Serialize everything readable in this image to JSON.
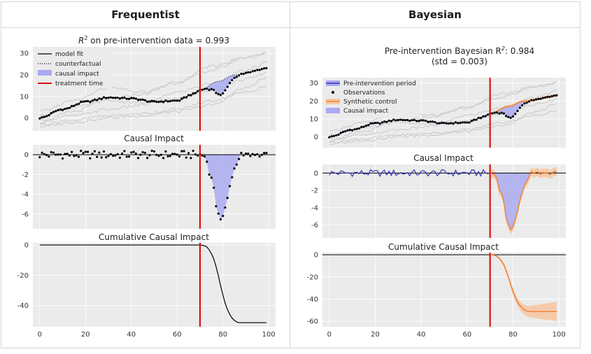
{
  "headers": {
    "frequentist": "Frequentist",
    "bayesian": "Bayesian"
  },
  "colors": {
    "panel_bg": "#ebebeb",
    "grid": "#ffffff",
    "treatment": "#dd1111",
    "impact_fill": "#aaaaf0",
    "orange": "#f08030",
    "blue": "#3333bb",
    "synthetic_band": "#f6c8a4"
  },
  "text": {
    "f_r2_prefix": "R",
    "f_r2_sup": "2",
    "f_r2_suffix": " on pre-intervention data = 0.993",
    "f_causal_title": "Causal Impact",
    "f_cum_title": "Cumulative Causal Impact",
    "b_title_prefix": "Pre-intervention Bayesian R",
    "b_title_sup": "2",
    "b_title_suffix": ": 0.984",
    "b_title_line2": "(std = 0.003)",
    "b_causal_title": "Causal Impact",
    "b_cum_title": "Cumulative Causal Impact"
  },
  "legend": {
    "frequentist": [
      "model fit",
      "counterfactual",
      "causal impact",
      "treatment time"
    ],
    "bayesian": [
      "Pre-intervention period",
      "Observations",
      "Synthetic control",
      "Causal impact"
    ]
  },
  "chart_data": [
    {
      "id": "f_main",
      "type": "line",
      "xlim": [
        -3,
        103
      ],
      "ylim": [
        -6,
        33
      ],
      "yticks": [
        0,
        10,
        20,
        30
      ],
      "xticks": [],
      "grid": true,
      "legend_position": "top-left"
    },
    {
      "id": "f_impact",
      "type": "scatter",
      "title": "Causal Impact",
      "xlim": [
        -3,
        103
      ],
      "ylim": [
        -7.5,
        1.0
      ],
      "yticks": [
        0,
        -2,
        -4,
        -6
      ],
      "xticks": [],
      "grid": true
    },
    {
      "id": "f_cum",
      "type": "line",
      "title": "Cumulative Causal Impact",
      "xlim": [
        -3,
        103
      ],
      "ylim": [
        -54,
        1.5
      ],
      "yticks": [
        0,
        -20,
        -40
      ],
      "xticks": [
        0,
        20,
        40,
        60,
        80,
        100
      ],
      "grid": true
    },
    {
      "id": "b_main",
      "type": "line",
      "xlim": [
        -3,
        103
      ],
      "ylim": [
        -6,
        33
      ],
      "yticks": [
        0,
        10,
        20,
        30
      ],
      "xticks": [],
      "grid": true,
      "legend_position": "top-left"
    },
    {
      "id": "b_impact",
      "type": "line",
      "title": "Causal Impact",
      "xlim": [
        -3,
        103
      ],
      "ylim": [
        -7.5,
        1.0
      ],
      "yticks": [
        0,
        -2,
        -4,
        -6
      ],
      "xticks": [],
      "grid": true
    },
    {
      "id": "b_cum",
      "type": "line",
      "title": "Cumulative Causal Impact",
      "xlim": [
        -3,
        103
      ],
      "ylim": [
        -65,
        2
      ],
      "yticks": [
        0,
        -20,
        -40,
        -60
      ],
      "xticks": [
        0,
        20,
        40,
        60,
        80,
        100
      ],
      "grid": true
    }
  ],
  "series_model": {
    "treatment_time": 70,
    "n_points": 100,
    "fit_knots": [
      [
        0,
        0
      ],
      [
        10,
        4
      ],
      [
        20,
        7.5
      ],
      [
        30,
        9.5
      ],
      [
        40,
        9
      ],
      [
        50,
        7.5
      ],
      [
        60,
        8
      ],
      [
        67,
        11
      ],
      [
        70,
        13
      ],
      [
        78,
        17
      ],
      [
        85,
        20
      ],
      [
        100,
        23
      ]
    ],
    "counterfactual_knots": [
      [
        70,
        13
      ],
      [
        78,
        17
      ],
      [
        85,
        20
      ],
      [
        100,
        23
      ]
    ],
    "impact_knots": [
      [
        70,
        0
      ],
      [
        72,
        -0.3
      ],
      [
        75,
        -2.5
      ],
      [
        78,
        -6
      ],
      [
        79,
        -6.7
      ],
      [
        81,
        -5.5
      ],
      [
        83,
        -3
      ],
      [
        86,
        -1
      ],
      [
        88,
        0
      ],
      [
        100,
        0
      ]
    ],
    "control_curves": [
      [
        [
          0,
          -2
        ],
        [
          15,
          3
        ],
        [
          30,
          9
        ],
        [
          45,
          11
        ],
        [
          60,
          17
        ],
        [
          75,
          22
        ],
        [
          90,
          28
        ],
        [
          100,
          30
        ]
      ],
      [
        [
          0,
          3
        ],
        [
          15,
          8
        ],
        [
          30,
          14
        ],
        [
          45,
          12
        ],
        [
          60,
          16
        ],
        [
          75,
          24
        ],
        [
          90,
          28
        ],
        [
          100,
          31
        ]
      ],
      [
        [
          0,
          -1
        ],
        [
          15,
          1
        ],
        [
          30,
          4
        ],
        [
          45,
          6
        ],
        [
          60,
          12
        ],
        [
          75,
          16
        ],
        [
          90,
          22
        ],
        [
          100,
          26
        ]
      ],
      [
        [
          0,
          -3
        ],
        [
          15,
          -1
        ],
        [
          30,
          1
        ],
        [
          45,
          2
        ],
        [
          60,
          4
        ],
        [
          75,
          8
        ],
        [
          90,
          12
        ],
        [
          100,
          15
        ]
      ],
      [
        [
          0,
          1
        ],
        [
          15,
          5
        ],
        [
          30,
          8
        ],
        [
          45,
          7
        ],
        [
          60,
          9
        ],
        [
          75,
          13
        ],
        [
          90,
          18
        ],
        [
          100,
          21
        ]
      ],
      [
        [
          0,
          -4
        ],
        [
          15,
          -2
        ],
        [
          30,
          0
        ],
        [
          45,
          1
        ],
        [
          60,
          3
        ],
        [
          75,
          6
        ],
        [
          90,
          14
        ],
        [
          100,
          19
        ]
      ]
    ]
  }
}
